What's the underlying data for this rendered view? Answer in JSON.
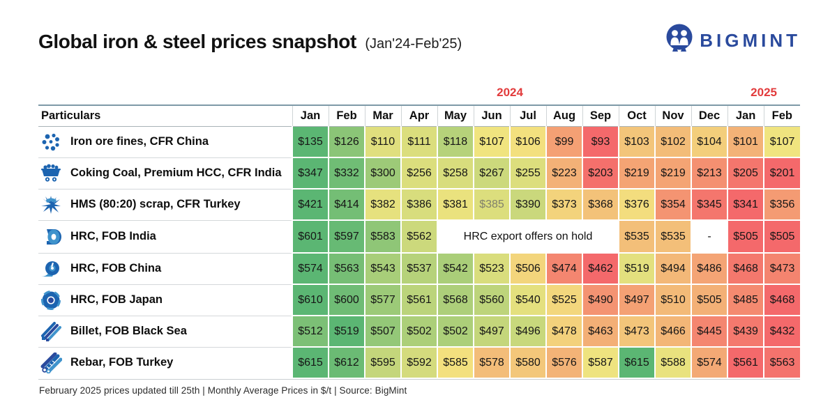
{
  "header": {
    "title": "Global iron & steel prices snapshot",
    "subtitle": "(Jan'24-Feb'25)",
    "brand": "BIGMINT"
  },
  "years": [
    {
      "label": "2024",
      "span": 12
    },
    {
      "label": "2025",
      "span": 2
    }
  ],
  "table": {
    "particulars_header": "Particulars",
    "currency_prefix": "$",
    "months": [
      "Jan",
      "Feb",
      "Mar",
      "Apr",
      "May",
      "Jun",
      "Jul",
      "Aug",
      "Sep",
      "Oct",
      "Nov",
      "Dec",
      "Jan",
      "Feb"
    ],
    "rows": [
      {
        "icon": "iron-ore-icon",
        "label": "Iron ore fines, CFR China",
        "values": [
          135,
          126,
          110,
          111,
          118,
          107,
          106,
          99,
          93,
          103,
          102,
          104,
          101,
          107
        ]
      },
      {
        "icon": "coal-cart-icon",
        "label": "Coking Coal, Premium HCC, CFR India",
        "values": [
          347,
          332,
          300,
          256,
          258,
          267,
          255,
          223,
          203,
          219,
          219,
          213,
          205,
          201
        ]
      },
      {
        "icon": "scrap-icon",
        "label": "HMS (80:20) scrap, CFR Turkey",
        "values": [
          421,
          414,
          382,
          386,
          381,
          385,
          390,
          373,
          368,
          376,
          354,
          345,
          341,
          356
        ],
        "muted_indexes": [
          5
        ]
      },
      {
        "icon": "coil-icon",
        "label": "HRC, FOB India",
        "values": [
          601,
          597,
          583,
          562,
          null,
          null,
          null,
          null,
          null,
          535,
          535,
          "-",
          505,
          505
        ],
        "note": {
          "text": "HRC export offers on hold",
          "start": 4,
          "span": 5
        }
      },
      {
        "icon": "coil-unroll-icon",
        "label": "HRC, FOB China",
        "values": [
          574,
          563,
          543,
          537,
          542,
          523,
          506,
          474,
          462,
          519,
          494,
          486,
          468,
          473
        ]
      },
      {
        "icon": "coil-top-icon",
        "label": "HRC, FOB Japan",
        "values": [
          610,
          600,
          577,
          561,
          568,
          560,
          540,
          525,
          490,
          497,
          510,
          505,
          485,
          468
        ]
      },
      {
        "icon": "billet-icon",
        "label": "Billet, FOB Black Sea",
        "values": [
          512,
          519,
          507,
          502,
          502,
          497,
          496,
          478,
          463,
          473,
          466,
          445,
          439,
          432
        ]
      },
      {
        "icon": "rebar-icon",
        "label": "Rebar, FOB Turkey",
        "values": [
          615,
          612,
          595,
          592,
          585,
          578,
          580,
          576,
          587,
          615,
          588,
          574,
          561,
          563
        ]
      }
    ]
  },
  "heatmap": {
    "min_color": "#F4696B",
    "mid_color": "#F3E57F",
    "max_color": "#5BB673"
  },
  "colors": {
    "year_label": "#E23B3C",
    "brand": "#2A4A9D"
  },
  "footer": "February 2025 prices updated till 25th  |  Monthly Average Prices in $/t  |  Source: BigMint",
  "chart_data": {
    "type": "heatmap",
    "title": "Global iron & steel prices snapshot (Jan'24-Feb'25)",
    "unit": "$/t (monthly average)",
    "x": [
      "Jan'24",
      "Feb'24",
      "Mar'24",
      "Apr'24",
      "May'24",
      "Jun'24",
      "Jul'24",
      "Aug'24",
      "Sep'24",
      "Oct'24",
      "Nov'24",
      "Dec'24",
      "Jan'25",
      "Feb'25"
    ],
    "series": [
      {
        "name": "Iron ore fines, CFR China",
        "values": [
          135,
          126,
          110,
          111,
          118,
          107,
          106,
          99,
          93,
          103,
          102,
          104,
          101,
          107
        ]
      },
      {
        "name": "Coking Coal, Premium HCC, CFR India",
        "values": [
          347,
          332,
          300,
          256,
          258,
          267,
          255,
          223,
          203,
          219,
          219,
          213,
          205,
          201
        ]
      },
      {
        "name": "HMS (80:20) scrap, CFR Turkey",
        "values": [
          421,
          414,
          382,
          386,
          381,
          385,
          390,
          373,
          368,
          376,
          354,
          345,
          341,
          356
        ]
      },
      {
        "name": "HRC, FOB India",
        "values": [
          601,
          597,
          583,
          562,
          null,
          null,
          null,
          null,
          null,
          535,
          535,
          null,
          505,
          505
        ],
        "note": "HRC export offers on hold (May-Sep 2024); Dec 2024 not available"
      },
      {
        "name": "HRC, FOB China",
        "values": [
          574,
          563,
          543,
          537,
          542,
          523,
          506,
          474,
          462,
          519,
          494,
          486,
          468,
          473
        ]
      },
      {
        "name": "HRC, FOB Japan",
        "values": [
          610,
          600,
          577,
          561,
          568,
          560,
          540,
          525,
          490,
          497,
          510,
          505,
          485,
          468
        ]
      },
      {
        "name": "Billet, FOB Black Sea",
        "values": [
          512,
          519,
          507,
          502,
          502,
          497,
          496,
          478,
          463,
          473,
          466,
          445,
          439,
          432
        ]
      },
      {
        "name": "Rebar, FOB Turkey",
        "values": [
          615,
          612,
          595,
          592,
          585,
          578,
          580,
          576,
          587,
          615,
          588,
          574,
          561,
          563
        ]
      }
    ],
    "color_scale": "per-row red(min)-yellow(median)-green(max)",
    "source": "BigMint"
  }
}
